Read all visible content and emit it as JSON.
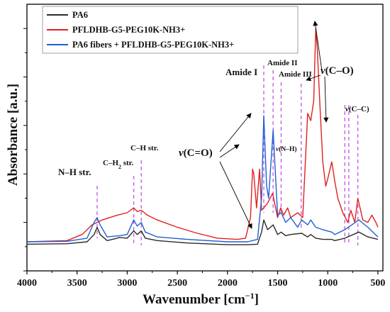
{
  "chart_data": {
    "type": "line",
    "xlabel_main": "Wavenumber [cm",
    "xlabel_sup": "−1",
    "xlabel_tail": "]",
    "ylabel": "Absorbance [a.u.]",
    "xlim": [
      4000,
      450
    ],
    "x_reversed": true,
    "ylim": [
      -0.1,
      1.0
    ],
    "xticks": [
      "4000",
      "3500",
      "3000",
      "2500",
      "2000",
      "1500",
      "1000",
      "500"
    ],
    "xtick_values": [
      4000,
      3500,
      3000,
      2500,
      2000,
      1500,
      1000,
      500
    ],
    "legend_position": "top-left",
    "series": [
      {
        "name": "PA6",
        "color": "#2b2b2b",
        "points": [
          [
            4000,
            0.01
          ],
          [
            3600,
            0.012
          ],
          [
            3400,
            0.02
          ],
          [
            3330,
            0.05
          ],
          [
            3300,
            0.08
          ],
          [
            3270,
            0.05
          ],
          [
            3200,
            0.025
          ],
          [
            3100,
            0.035
          ],
          [
            3080,
            0.038
          ],
          [
            3000,
            0.035
          ],
          [
            2935,
            0.065
          ],
          [
            2900,
            0.05
          ],
          [
            2860,
            0.065
          ],
          [
            2820,
            0.035
          ],
          [
            2700,
            0.025
          ],
          [
            2400,
            0.015
          ],
          [
            2000,
            0.008
          ],
          [
            1800,
            0.008
          ],
          [
            1700,
            0.01
          ],
          [
            1660,
            0.06
          ],
          [
            1638,
            0.11
          ],
          [
            1600,
            0.07
          ],
          [
            1545,
            0.09
          ],
          [
            1500,
            0.05
          ],
          [
            1465,
            0.06
          ],
          [
            1420,
            0.045
          ],
          [
            1370,
            0.05
          ],
          [
            1260,
            0.055
          ],
          [
            1200,
            0.04
          ],
          [
            1170,
            0.05
          ],
          [
            1120,
            0.035
          ],
          [
            1050,
            0.03
          ],
          [
            960,
            0.03
          ],
          [
            930,
            0.025
          ],
          [
            830,
            0.035
          ],
          [
            690,
            0.06
          ],
          [
            600,
            0.04
          ],
          [
            500,
            0.03
          ]
        ]
      },
      {
        "name": "PFLDHB-G5-PEG10K-NH3+",
        "color": "#e02020",
        "points": [
          [
            4000,
            0.02
          ],
          [
            3600,
            0.025
          ],
          [
            3450,
            0.05
          ],
          [
            3350,
            0.09
          ],
          [
            3250,
            0.11
          ],
          [
            3100,
            0.13
          ],
          [
            3000,
            0.14
          ],
          [
            2935,
            0.16
          ],
          [
            2900,
            0.145
          ],
          [
            2860,
            0.15
          ],
          [
            2800,
            0.13
          ],
          [
            2700,
            0.11
          ],
          [
            2500,
            0.08
          ],
          [
            2300,
            0.055
          ],
          [
            2100,
            0.035
          ],
          [
            1900,
            0.03
          ],
          [
            1820,
            0.035
          ],
          [
            1770,
            0.12
          ],
          [
            1750,
            0.32
          ],
          [
            1738,
            0.3
          ],
          [
            1710,
            0.16
          ],
          [
            1680,
            0.32
          ],
          [
            1660,
            0.15
          ],
          [
            1638,
            0.16
          ],
          [
            1600,
            0.18
          ],
          [
            1550,
            0.22
          ],
          [
            1500,
            0.12
          ],
          [
            1470,
            0.16
          ],
          [
            1440,
            0.13
          ],
          [
            1400,
            0.16
          ],
          [
            1370,
            0.12
          ],
          [
            1300,
            0.14
          ],
          [
            1250,
            0.12
          ],
          [
            1200,
            0.55
          ],
          [
            1170,
            0.52
          ],
          [
            1140,
            0.6
          ],
          [
            1120,
            0.9
          ],
          [
            1105,
            0.82
          ],
          [
            1080,
            0.6
          ],
          [
            1050,
            0.35
          ],
          [
            1020,
            0.25
          ],
          [
            1000,
            0.28
          ],
          [
            960,
            0.35
          ],
          [
            930,
            0.27
          ],
          [
            900,
            0.2
          ],
          [
            850,
            0.14
          ],
          [
            800,
            0.1
          ],
          [
            770,
            0.15
          ],
          [
            730,
            0.1
          ],
          [
            700,
            0.2
          ],
          [
            650,
            0.11
          ],
          [
            600,
            0.1
          ],
          [
            560,
            0.13
          ],
          [
            520,
            0.1
          ],
          [
            500,
            0.08
          ]
        ]
      },
      {
        "name": "PA6 fibers + PFLDHB-G5-PEG10K-NH3+",
        "color": "#1f5fd6",
        "points": [
          [
            4000,
            0.02
          ],
          [
            3600,
            0.022
          ],
          [
            3400,
            0.035
          ],
          [
            3330,
            0.1
          ],
          [
            3300,
            0.12
          ],
          [
            3270,
            0.09
          ],
          [
            3200,
            0.04
          ],
          [
            3080,
            0.045
          ],
          [
            3000,
            0.05
          ],
          [
            2935,
            0.11
          ],
          [
            2900,
            0.085
          ],
          [
            2860,
            0.1
          ],
          [
            2820,
            0.06
          ],
          [
            2700,
            0.04
          ],
          [
            2400,
            0.03
          ],
          [
            2000,
            0.02
          ],
          [
            1800,
            0.02
          ],
          [
            1700,
            0.03
          ],
          [
            1660,
            0.2
          ],
          [
            1638,
            0.54
          ],
          [
            1610,
            0.25
          ],
          [
            1590,
            0.2
          ],
          [
            1545,
            0.48
          ],
          [
            1500,
            0.13
          ],
          [
            1465,
            0.14
          ],
          [
            1420,
            0.1
          ],
          [
            1370,
            0.12
          ],
          [
            1300,
            0.08
          ],
          [
            1260,
            0.11
          ],
          [
            1200,
            0.09
          ],
          [
            1170,
            0.11
          ],
          [
            1120,
            0.08
          ],
          [
            1050,
            0.07
          ],
          [
            960,
            0.06
          ],
          [
            930,
            0.05
          ],
          [
            830,
            0.07
          ],
          [
            690,
            0.11
          ],
          [
            600,
            0.08
          ],
          [
            500,
            0.04
          ]
        ]
      }
    ],
    "annotations": [
      {
        "text": "N–H str.",
        "size": 13
      },
      {
        "text_main": "C–H",
        "text_sub": "2",
        "text_tail": " str.",
        "size": 11
      },
      {
        "text": "C–H str.",
        "size": 11
      },
      {
        "text": "Amide I",
        "size": 13
      },
      {
        "text": "Amide II",
        "size": 11
      },
      {
        "text": "Amide III",
        "size": 11
      },
      {
        "text_nu": "ν",
        "text_rest": "(N–H)",
        "size": 9.5
      },
      {
        "text_nu": "ν",
        "text_rest": "(C=O)",
        "size": 15
      },
      {
        "text_nu": "ν",
        "text_rest": "(C–O)",
        "size": 15
      },
      {
        "text_nu": "ν",
        "text_rest": "(C–C)",
        "size": 11
      }
    ],
    "marker_lines": [
      3300,
      2935,
      2860,
      1638,
      1545,
      1465,
      1265,
      830,
      790,
      700
    ]
  }
}
